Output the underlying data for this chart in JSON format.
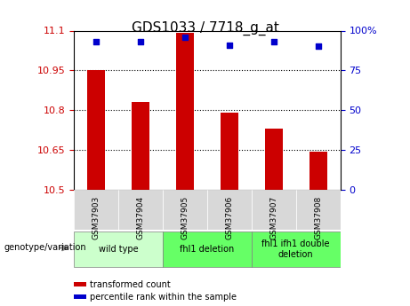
{
  "title": "GDS1033 / 7718_g_at",
  "samples": [
    "GSM37903",
    "GSM37904",
    "GSM37905",
    "GSM37906",
    "GSM37907",
    "GSM37908"
  ],
  "bar_values": [
    10.95,
    10.83,
    11.09,
    10.79,
    10.73,
    10.645
  ],
  "percentile_values": [
    93,
    93,
    96,
    91,
    93,
    90
  ],
  "ylim_left": [
    10.5,
    11.1
  ],
  "ylim_right": [
    0,
    100
  ],
  "yticks_left": [
    10.5,
    10.65,
    10.8,
    10.95,
    11.1
  ],
  "ytick_labels_left": [
    "10.5",
    "10.65",
    "10.8",
    "10.95",
    "11.1"
  ],
  "yticks_right": [
    0,
    25,
    50,
    75,
    100
  ],
  "ytick_labels_right": [
    "0",
    "25",
    "50",
    "75",
    "100%"
  ],
  "hlines": [
    10.65,
    10.8,
    10.95
  ],
  "bar_color": "#cc0000",
  "percentile_color": "#0000cc",
  "bar_width": 0.4,
  "groups": [
    {
      "label": "wild type",
      "samples": [
        "GSM37903",
        "GSM37904"
      ],
      "color": "#ccffcc"
    },
    {
      "label": "fhl1 deletion",
      "samples": [
        "GSM37905",
        "GSM37906"
      ],
      "color": "#66ff66"
    },
    {
      "label": "fhl1 ifh1 double\ndeletion",
      "samples": [
        "GSM37907",
        "GSM37908"
      ],
      "color": "#66ff66"
    }
  ],
  "legend_items": [
    {
      "label": "transformed count",
      "color": "#cc0000"
    },
    {
      "label": "percentile rank within the sample",
      "color": "#0000cc"
    }
  ],
  "xlabel_group": "genotype/variation",
  "bg_color": "#ffffff",
  "plot_bg_color": "#ffffff",
  "tick_label_color_left": "#cc0000",
  "tick_label_color_right": "#0000cc"
}
